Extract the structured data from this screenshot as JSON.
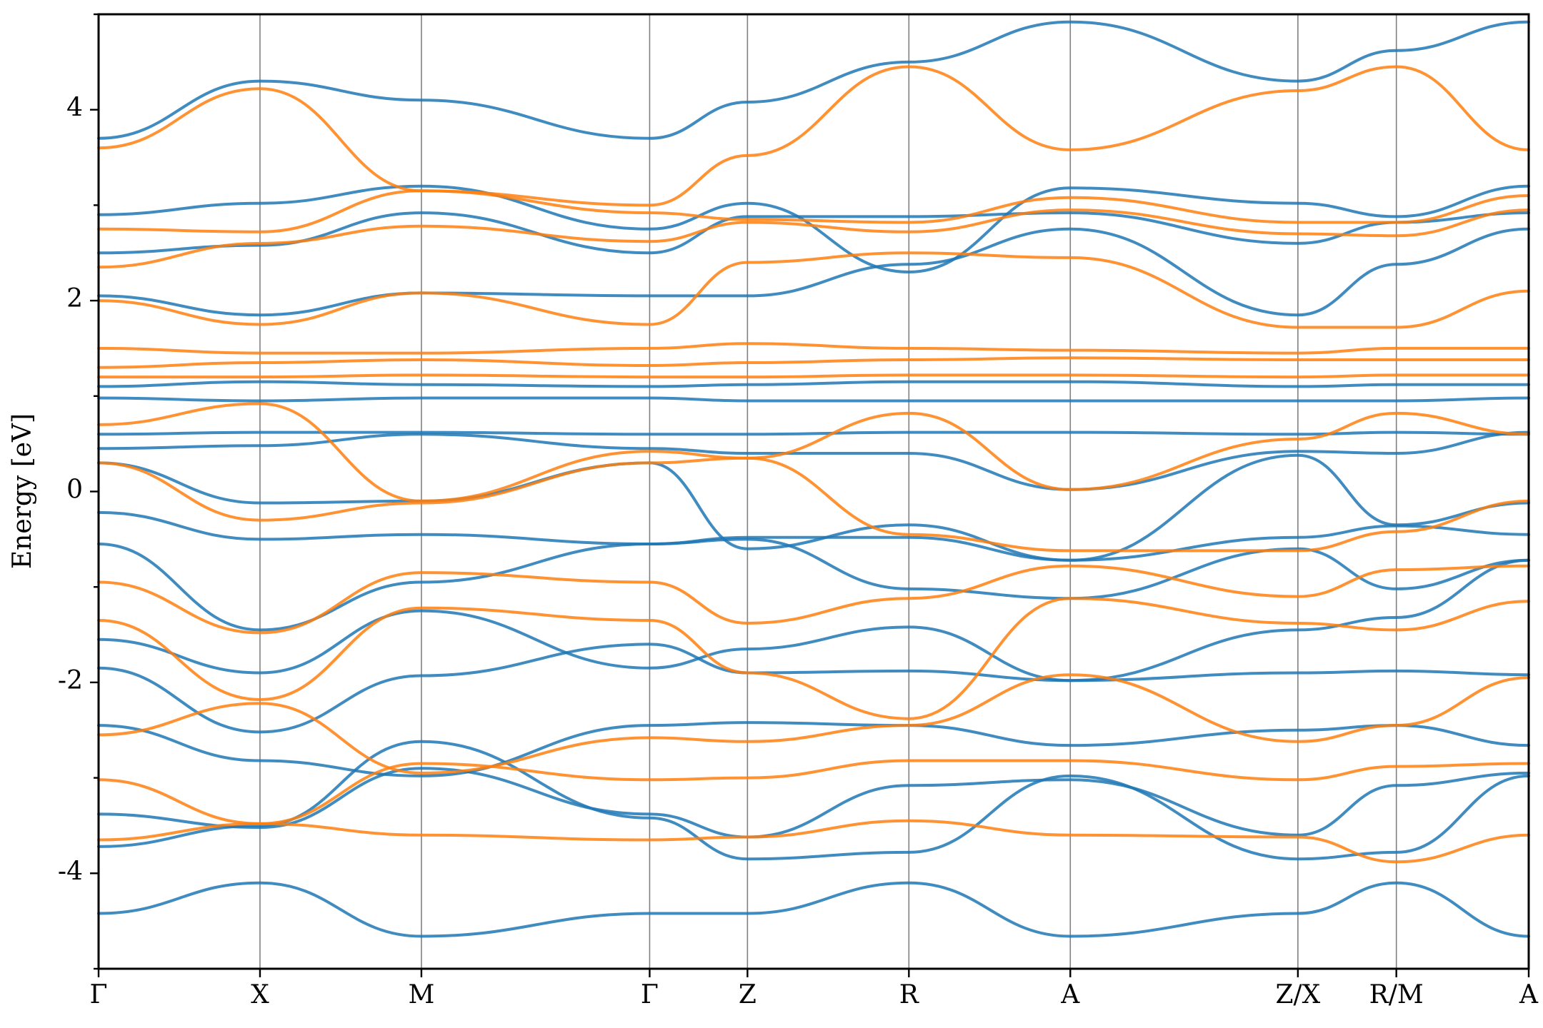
{
  "chart_data": {
    "type": "line",
    "title": "",
    "xlabel": "",
    "ylabel": "Energy [eV]",
    "ylim": [
      -5,
      5
    ],
    "yticks": [
      -4,
      -2,
      0,
      2,
      4
    ],
    "ytick_labels": [
      "-4",
      "-2",
      "0",
      "2",
      "4"
    ],
    "grid": false,
    "legend": "none",
    "kpath": {
      "labels": [
        "Γ",
        "X",
        "M",
        "Γ",
        "Z",
        "R",
        "A",
        "Z/X",
        "R/M",
        "A"
      ],
      "positions": [
        0,
        1,
        2,
        3.414,
        4.02,
        5.02,
        6.02,
        7.43,
        8.04,
        8.86
      ],
      "segment_breaks": [
        7.43,
        8.04
      ]
    },
    "colors": {
      "spin_up": "#1f77b4",
      "spin_down": "#ff7f0e"
    },
    "series": [
      {
        "color": "#1f77b4",
        "bands": [
          [
            -4.42,
            -4.1,
            -4.66,
            -4.42,
            -4.42,
            -4.1,
            -4.66,
            -4.42,
            -4.1,
            -4.66
          ],
          [
            -3.72,
            -3.5,
            -2.62,
            -3.42,
            -3.85,
            -3.78,
            -2.98,
            -3.85,
            -3.78,
            -2.98
          ],
          [
            -3.38,
            -3.52,
            -2.9,
            -3.38,
            -3.62,
            -3.08,
            -3.02,
            -3.6,
            -3.08,
            -2.95
          ],
          [
            -2.45,
            -2.82,
            -2.98,
            -2.45,
            -2.42,
            -2.45,
            -2.66,
            -2.5,
            -2.45,
            -2.66
          ],
          [
            -1.85,
            -2.52,
            -1.93,
            -1.6,
            -1.9,
            -1.88,
            -1.98,
            -1.9,
            -1.88,
            -1.92
          ],
          [
            -1.55,
            -1.9,
            -1.25,
            -1.85,
            -1.65,
            -1.42,
            -1.98,
            -1.45,
            -1.32,
            -0.72
          ],
          [
            -0.55,
            -1.45,
            -0.95,
            -0.55,
            -0.5,
            -1.02,
            -1.12,
            -0.6,
            -1.02,
            -0.72
          ],
          [
            -0.22,
            -0.5,
            -0.45,
            -0.55,
            -0.48,
            -0.48,
            -0.72,
            -0.48,
            -0.36,
            -0.45
          ],
          [
            0.3,
            -0.12,
            -0.1,
            0.3,
            -0.6,
            -0.35,
            -0.72,
            0.38,
            -0.35,
            -0.12
          ],
          [
            0.45,
            0.48,
            0.6,
            0.45,
            0.4,
            0.4,
            0.02,
            0.42,
            0.4,
            0.62
          ],
          [
            0.6,
            0.62,
            0.62,
            0.6,
            0.6,
            0.62,
            0.62,
            0.6,
            0.62,
            0.6
          ],
          [
            0.98,
            0.95,
            0.98,
            0.98,
            0.95,
            0.95,
            0.95,
            0.95,
            0.95,
            0.98
          ],
          [
            1.1,
            1.15,
            1.12,
            1.1,
            1.12,
            1.15,
            1.15,
            1.1,
            1.12,
            1.12
          ],
          [
            2.05,
            1.85,
            2.08,
            2.05,
            2.05,
            2.38,
            2.75,
            1.85,
            2.38,
            2.75
          ],
          [
            2.5,
            2.58,
            2.92,
            2.5,
            2.88,
            2.88,
            2.92,
            2.6,
            2.82,
            2.92
          ],
          [
            2.9,
            3.02,
            3.2,
            2.75,
            3.02,
            2.3,
            3.18,
            3.02,
            2.88,
            3.2
          ],
          [
            3.7,
            4.3,
            4.1,
            3.7,
            4.08,
            4.5,
            4.92,
            4.3,
            4.62,
            4.92
          ]
        ]
      },
      {
        "color": "#ff7f0e",
        "bands": [
          [
            -3.65,
            -3.48,
            -3.6,
            -3.65,
            -3.62,
            -3.45,
            -3.6,
            -3.62,
            -3.88,
            -3.6
          ],
          [
            -3.02,
            -3.48,
            -2.85,
            -3.02,
            -3.0,
            -2.82,
            -2.82,
            -3.02,
            -2.88,
            -2.85
          ],
          [
            -2.55,
            -2.22,
            -2.95,
            -2.58,
            -2.62,
            -2.45,
            -1.92,
            -2.62,
            -2.45,
            -1.95
          ],
          [
            -1.35,
            -2.18,
            -1.22,
            -1.35,
            -1.9,
            -2.38,
            -1.12,
            -1.38,
            -1.45,
            -1.15
          ],
          [
            -0.95,
            -1.48,
            -0.85,
            -0.95,
            -1.38,
            -1.12,
            -0.78,
            -1.1,
            -0.82,
            -0.78
          ],
          [
            0.3,
            -0.3,
            -0.12,
            0.3,
            0.35,
            -0.45,
            -0.62,
            -0.62,
            -0.42,
            -0.1
          ],
          [
            0.7,
            0.92,
            -0.1,
            0.42,
            0.35,
            0.82,
            0.02,
            0.55,
            0.82,
            0.6
          ],
          [
            1.2,
            1.2,
            1.22,
            1.2,
            1.2,
            1.22,
            1.22,
            1.2,
            1.22,
            1.22
          ],
          [
            1.3,
            1.35,
            1.38,
            1.32,
            1.35,
            1.38,
            1.4,
            1.38,
            1.38,
            1.38
          ],
          [
            1.5,
            1.45,
            1.45,
            1.5,
            1.55,
            1.5,
            1.48,
            1.45,
            1.5,
            1.5
          ],
          [
            2.0,
            1.75,
            2.08,
            1.75,
            2.4,
            2.5,
            2.45,
            1.72,
            1.72,
            2.1
          ],
          [
            2.35,
            2.6,
            2.78,
            2.62,
            2.82,
            2.72,
            2.95,
            2.7,
            2.68,
            2.95
          ],
          [
            2.75,
            2.72,
            3.15,
            2.92,
            2.85,
            2.82,
            3.08,
            2.82,
            2.82,
            3.1
          ],
          [
            3.6,
            4.22,
            3.15,
            3.0,
            3.52,
            4.45,
            3.58,
            4.2,
            4.45,
            3.58
          ]
        ]
      }
    ]
  }
}
